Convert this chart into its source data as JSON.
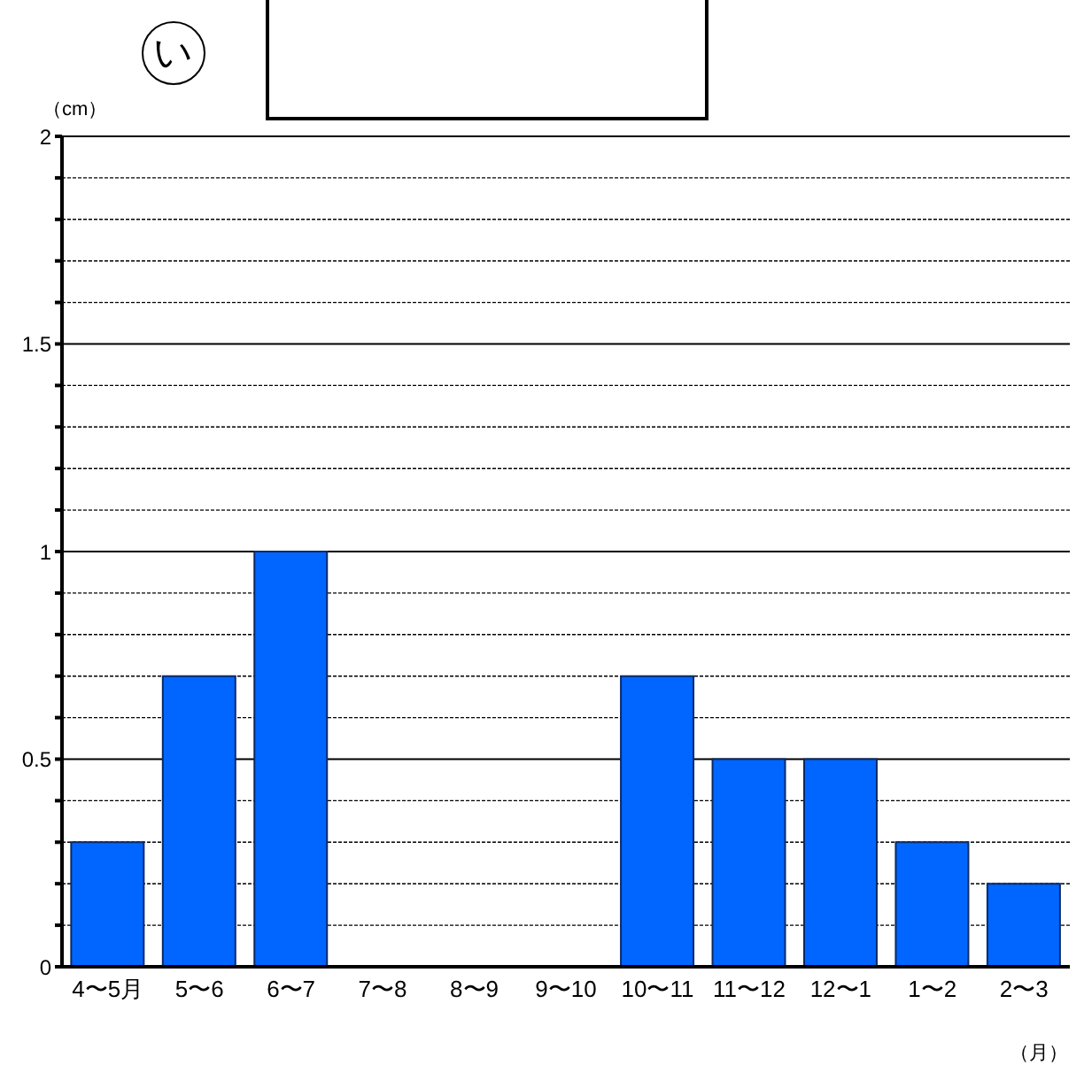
{
  "chart_data": {
    "type": "bar",
    "annotations": [
      "い"
    ],
    "ylabel": "（cm）",
    "xlabel": "（月）",
    "categories": [
      "4〜5月",
      "5〜6",
      "6〜7",
      "7〜8",
      "8〜9",
      "9〜10",
      "10〜11",
      "11〜12",
      "12〜1",
      "1〜2",
      "2〜3"
    ],
    "values": [
      0.3,
      0.7,
      1,
      0,
      0,
      0,
      0.7,
      0.5,
      0.5,
      0.3,
      0.2
    ],
    "color": "#0066ff",
    "ylim": [
      0,
      2
    ],
    "yticks": [
      0,
      {
        "value": 0.1,
        "label": null
      },
      {
        "value": 0.2,
        "label": null
      },
      {
        "value": 0.3,
        "label": null
      },
      {
        "value": 0.4,
        "label": null
      },
      0.5,
      {
        "value": 0.6,
        "label": null
      },
      {
        "value": 0.7,
        "label": null
      },
      {
        "value": 0.8,
        "label": null
      },
      {
        "value": 0.9,
        "label": null
      },
      1,
      {
        "value": 1.1,
        "label": null
      },
      {
        "value": 1.2,
        "label": null
      },
      {
        "value": 1.3,
        "label": null
      },
      {
        "value": 1.4,
        "label": null
      },
      1.5,
      {
        "value": 1.6,
        "label": null
      },
      {
        "value": 1.7,
        "label": null
      },
      {
        "value": 1.8,
        "label": null
      },
      {
        "value": 1.9,
        "label": null
      },
      2
    ],
    "grid": "y",
    "legend": false
  }
}
